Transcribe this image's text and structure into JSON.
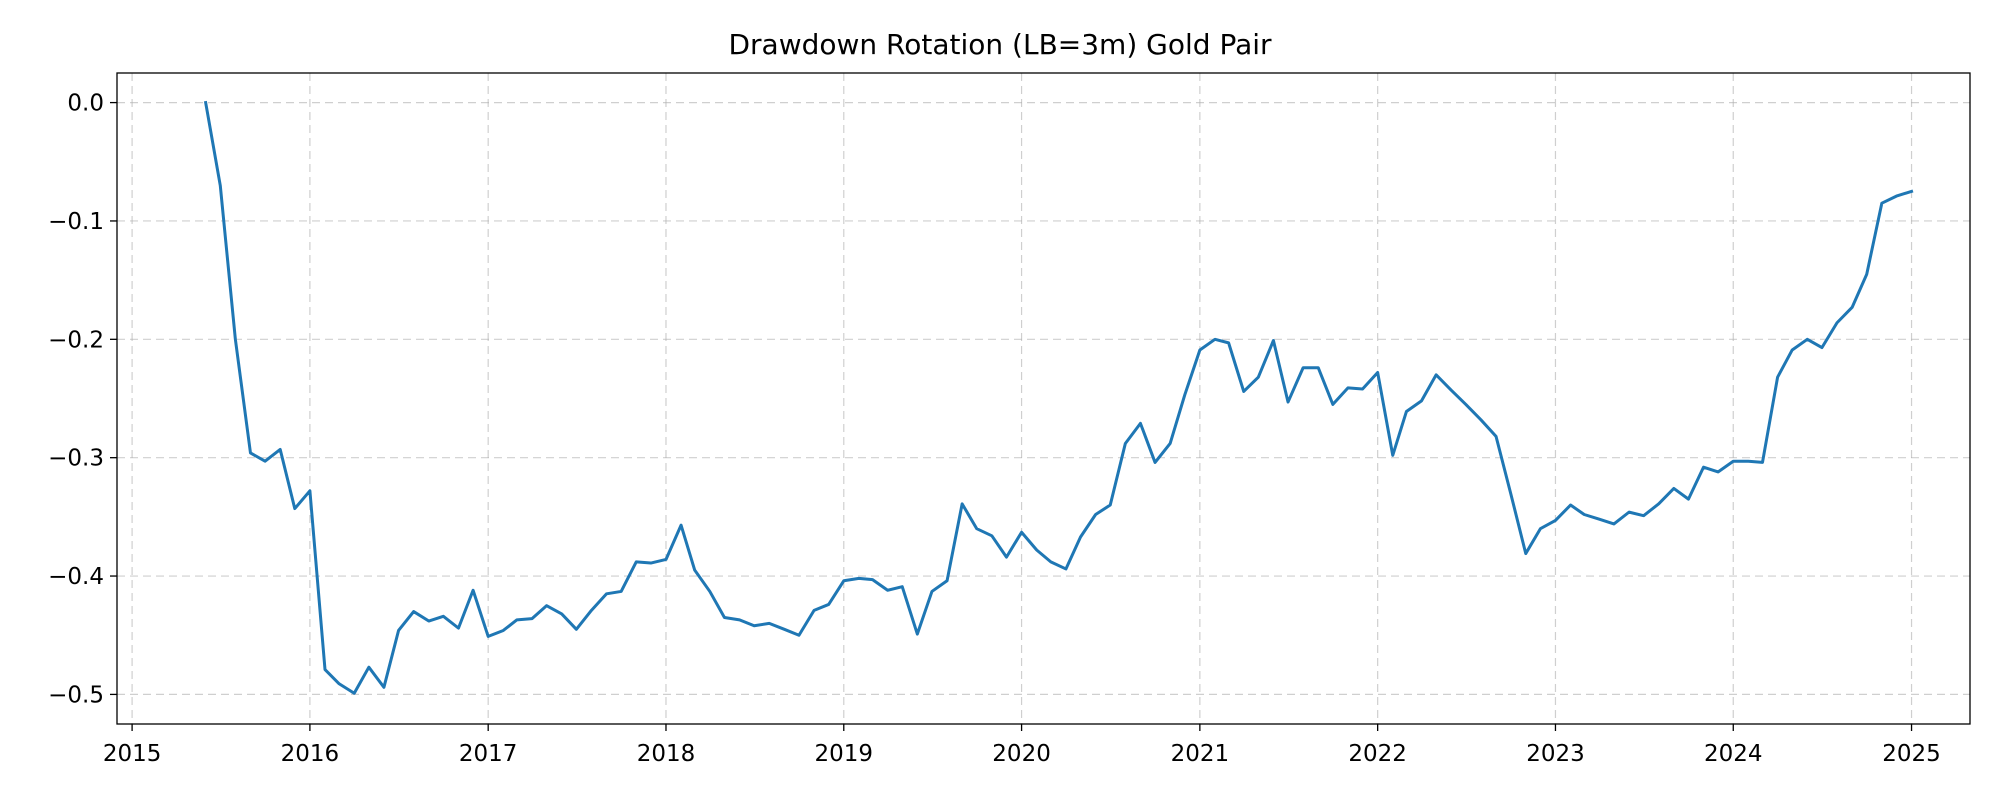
{
  "chart_data": {
    "type": "line",
    "title": "Drawdown Rotation (LB=3m) Gold Pair",
    "xlabel": "",
    "ylabel": "",
    "xlim": [
      "2014-12-01",
      "2025-05-01"
    ],
    "ylim": [
      -0.525,
      0.025
    ],
    "grid": true,
    "x_ticks": [
      "2015",
      "2016",
      "2017",
      "2018",
      "2019",
      "2020",
      "2021",
      "2022",
      "2023",
      "2024",
      "2025"
    ],
    "y_ticks": [
      {
        "value": 0.0,
        "label": "0.0"
      },
      {
        "value": -0.1,
        "label": "−0.1"
      },
      {
        "value": -0.2,
        "label": "−0.2"
      },
      {
        "value": -0.3,
        "label": "−0.3"
      },
      {
        "value": -0.4,
        "label": "−0.4"
      },
      {
        "value": -0.5,
        "label": "−0.5"
      }
    ],
    "series": [
      {
        "color": "#1f77b4",
        "x": [
          "2015-06",
          "2015-07",
          "2015-08",
          "2015-09",
          "2015-10",
          "2015-11",
          "2015-12",
          "2016-01",
          "2016-02",
          "2016-03",
          "2016-04",
          "2016-05",
          "2016-06",
          "2016-07",
          "2016-08",
          "2016-09",
          "2016-10",
          "2016-11",
          "2016-12",
          "2017-01",
          "2017-02",
          "2017-03",
          "2017-04",
          "2017-05",
          "2017-06",
          "2017-07",
          "2017-08",
          "2017-09",
          "2017-10",
          "2017-11",
          "2017-12",
          "2018-01",
          "2018-02",
          "2018-03",
          "2018-04",
          "2018-05",
          "2018-06",
          "2018-07",
          "2018-08",
          "2018-09",
          "2018-10",
          "2018-11",
          "2018-12",
          "2019-01",
          "2019-02",
          "2019-03",
          "2019-04",
          "2019-05",
          "2019-06",
          "2019-07",
          "2019-08",
          "2019-09",
          "2019-10",
          "2019-11",
          "2019-12",
          "2020-01",
          "2020-02",
          "2020-03",
          "2020-04",
          "2020-05",
          "2020-06",
          "2020-07",
          "2020-08",
          "2020-09",
          "2020-10",
          "2020-11",
          "2020-12",
          "2021-01",
          "2021-02",
          "2021-03",
          "2021-04",
          "2021-05",
          "2021-06",
          "2021-07",
          "2021-08",
          "2021-09",
          "2021-10",
          "2021-11",
          "2021-12",
          "2022-01",
          "2022-02",
          "2022-03",
          "2022-04",
          "2022-05",
          "2022-06",
          "2022-07",
          "2022-08",
          "2022-09",
          "2022-10",
          "2022-11",
          "2022-12",
          "2023-01",
          "2023-02",
          "2023-03",
          "2023-04",
          "2023-05",
          "2023-06",
          "2023-07",
          "2023-08",
          "2023-09",
          "2023-10",
          "2023-11",
          "2023-12",
          "2024-01",
          "2024-02",
          "2024-03",
          "2024-04",
          "2024-05",
          "2024-06",
          "2024-07",
          "2024-08",
          "2024-09",
          "2024-10",
          "2024-11",
          "2024-12",
          "2025-01"
        ],
        "values": [
          0.0,
          -0.07,
          -0.2,
          -0.296,
          -0.303,
          -0.293,
          -0.343,
          -0.328,
          -0.479,
          -0.491,
          -0.499,
          -0.477,
          -0.494,
          -0.446,
          -0.43,
          -0.438,
          -0.434,
          -0.444,
          -0.412,
          -0.451,
          -0.446,
          -0.437,
          -0.436,
          -0.425,
          -0.432,
          -0.445,
          -0.429,
          -0.415,
          -0.413,
          -0.388,
          -0.389,
          -0.386,
          -0.357,
          -0.395,
          -0.413,
          -0.435,
          -0.437,
          -0.442,
          -0.44,
          -0.445,
          -0.45,
          -0.429,
          -0.424,
          -0.404,
          -0.402,
          -0.403,
          -0.412,
          -0.409,
          -0.449,
          -0.413,
          -0.404,
          -0.339,
          -0.36,
          -0.366,
          -0.384,
          -0.363,
          -0.378,
          -0.388,
          -0.394,
          -0.367,
          -0.348,
          -0.34,
          -0.288,
          -0.271,
          -0.304,
          -0.288,
          -0.247,
          -0.209,
          -0.2,
          -0.203,
          -0.244,
          -0.232,
          -0.201,
          -0.253,
          -0.224,
          -0.224,
          -0.255,
          -0.241,
          -0.242,
          -0.228,
          -0.298,
          -0.261,
          -0.252,
          -0.23,
          -0.243,
          -0.255,
          -0.268,
          -0.282,
          -0.33,
          -0.381,
          -0.36,
          -0.353,
          -0.34,
          -0.348,
          -0.352,
          -0.356,
          -0.346,
          -0.349,
          -0.339,
          -0.326,
          -0.335,
          -0.308,
          -0.312,
          -0.303,
          -0.303,
          -0.304,
          -0.232,
          -0.209,
          -0.2,
          -0.207,
          -0.186,
          -0.173,
          -0.145,
          -0.085,
          -0.079,
          -0.075
        ]
      }
    ]
  }
}
